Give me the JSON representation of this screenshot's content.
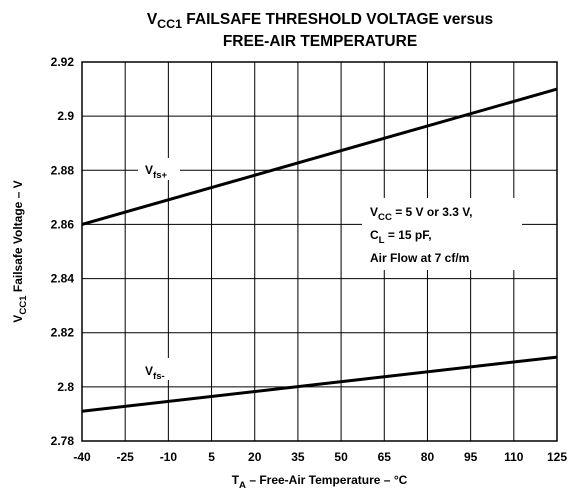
{
  "chart_data": {
    "type": "line",
    "title": [
      [
        "V",
        "CC1",
        " FAILSAFE THRESHOLD VOLTAGE versus"
      ],
      [
        "FREE-AIR TEMPERATURE"
      ]
    ],
    "x_label": [
      "T",
      "A",
      " – Free-Air Temperature – °C"
    ],
    "y_label": [
      "V",
      "CC1",
      " Failsafe Voltage – V"
    ],
    "x": [
      -40,
      125
    ],
    "series": [
      {
        "name": [
          "V",
          "fs+"
        ],
        "color": "#000000",
        "values": [
          2.86,
          2.91
        ]
      },
      {
        "name": [
          "V",
          "fs-"
        ],
        "color": "#000000",
        "values": [
          2.791,
          2.811
        ]
      }
    ],
    "annotations": [
      [
        "V",
        "CC",
        " = 5 V or 3.3 V,"
      ],
      [
        "C",
        "L",
        "  = 15 pF,"
      ],
      [
        "Air Flow at 7 cf/m"
      ]
    ],
    "xlim": [
      -40,
      125
    ],
    "xticks": [
      -40,
      -25,
      -10,
      5,
      20,
      35,
      50,
      65,
      80,
      95,
      110,
      125
    ],
    "ylim": [
      2.78,
      2.92
    ],
    "yticks": [
      2.78,
      2.8,
      2.82,
      2.84,
      2.86,
      2.88,
      2.9,
      2.92
    ],
    "grid": true
  }
}
